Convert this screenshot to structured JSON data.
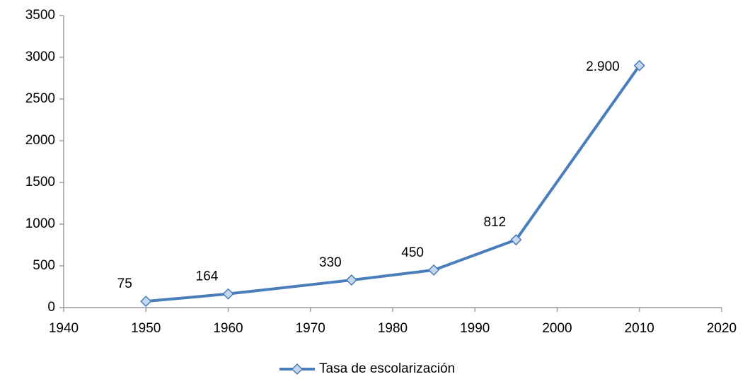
{
  "chart_data": {
    "type": "line",
    "x": [
      1950,
      1960,
      1975,
      1985,
      1995,
      2010
    ],
    "series": [
      {
        "name": "Tasa de escolarización",
        "color": "#4a7ebb",
        "values": [
          75,
          164,
          330,
          450,
          812,
          2900
        ],
        "value_labels": [
          "75",
          "164",
          "330",
          "450",
          "812",
          "2.900"
        ]
      }
    ],
    "xlim": [
      1940,
      2020
    ],
    "xticks": [
      1940,
      1950,
      1960,
      1970,
      1980,
      1990,
      2000,
      2010,
      2020
    ],
    "ylim": [
      0,
      3500
    ],
    "yticks": [
      0,
      500,
      1000,
      1500,
      2000,
      2500,
      3000,
      3500
    ],
    "grid": false,
    "legend": "bottom"
  }
}
